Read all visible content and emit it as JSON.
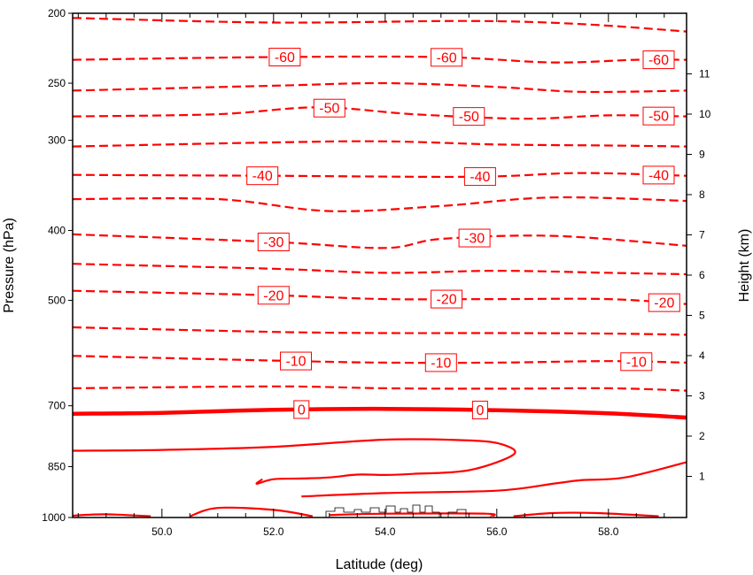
{
  "chart_data": {
    "type": "contour",
    "xlabel": "Latitude (deg)",
    "ylabel": "Pressure (hPa)",
    "y2label": "Height (km)",
    "xlim": [
      48.4,
      59.4
    ],
    "ylim": [
      1000,
      200
    ],
    "yscale": "log",
    "x_ticks": [
      50,
      52,
      54,
      56,
      58
    ],
    "x_tick_labels": [
      "50.0",
      "52.0",
      "54.0",
      "56.0",
      "58.0"
    ],
    "y_ticks": [
      1000,
      850,
      700,
      500,
      400,
      300,
      250,
      200
    ],
    "y_tick_labels": [
      "1000",
      "850",
      "700",
      "500",
      "400",
      "300",
      "250",
      "200"
    ],
    "y2_ticks": [
      1,
      2,
      3,
      4,
      5,
      6,
      7,
      8,
      9,
      10,
      11
    ],
    "y2_tick_labels": [
      "1",
      "2",
      "3",
      "4",
      "5",
      "6",
      "7",
      "8",
      "9",
      "10",
      "11"
    ],
    "contour_color": "#ff0000",
    "contours": [
      {
        "level": -65,
        "dash": true,
        "points": [
          [
            48.4,
            203
          ],
          [
            52,
            206
          ],
          [
            55.5,
            205
          ],
          [
            57.5,
            207
          ],
          [
            59.4,
            212
          ]
        ],
        "labels": []
      },
      {
        "level": -60,
        "dash": true,
        "points": [
          [
            48.4,
            232
          ],
          [
            52,
            230
          ],
          [
            55,
            230
          ],
          [
            57,
            234
          ],
          [
            58.5,
            232
          ],
          [
            59.4,
            232
          ]
        ],
        "labels": [
          {
            "x": 52.2,
            "text": "-60"
          },
          {
            "x": 55.1,
            "text": "-60"
          },
          {
            "x": 58.9,
            "text": "-60"
          }
        ]
      },
      {
        "level": -55,
        "dash": true,
        "points": [
          [
            48.4,
            256
          ],
          [
            52,
            252
          ],
          [
            54,
            250
          ],
          [
            56,
            253
          ],
          [
            57.5,
            257
          ],
          [
            59.4,
            256
          ]
        ],
        "labels": []
      },
      {
        "level": -50,
        "dash": true,
        "points": [
          [
            48.4,
            278
          ],
          [
            51,
            276
          ],
          [
            52.8,
            270
          ],
          [
            54.5,
            276
          ],
          [
            56.5,
            280
          ],
          [
            58,
            277
          ],
          [
            59.4,
            278
          ]
        ],
        "labels": [
          {
            "x": 53,
            "text": "-50"
          },
          {
            "x": 55.5,
            "text": "-50"
          },
          {
            "x": 58.9,
            "text": "-50"
          }
        ]
      },
      {
        "level": -45,
        "dash": true,
        "points": [
          [
            48.4,
            306
          ],
          [
            52,
            302
          ],
          [
            54,
            301
          ],
          [
            56,
            304
          ],
          [
            58,
            305
          ],
          [
            59.4,
            306
          ]
        ],
        "labels": []
      },
      {
        "level": -40,
        "dash": true,
        "points": [
          [
            48.4,
            335
          ],
          [
            52,
            336
          ],
          [
            55.6,
            337
          ],
          [
            57.5,
            333
          ],
          [
            59.4,
            336
          ]
        ],
        "labels": [
          {
            "x": 51.8,
            "text": "-40"
          },
          {
            "x": 55.7,
            "text": "-40"
          },
          {
            "x": 58.9,
            "text": "-40"
          }
        ]
      },
      {
        "level": -35,
        "dash": true,
        "points": [
          [
            48.4,
            362
          ],
          [
            51,
            362
          ],
          [
            53,
            376
          ],
          [
            55,
            370
          ],
          [
            57,
            360
          ],
          [
            59.4,
            364
          ]
        ],
        "labels": []
      },
      {
        "level": -30,
        "dash": true,
        "points": [
          [
            48.4,
            405
          ],
          [
            52,
            415
          ],
          [
            54,
            423
          ],
          [
            55,
            411
          ],
          [
            57,
            407
          ],
          [
            59.4,
            420
          ]
        ],
        "labels": [
          {
            "x": 52.0,
            "text": "-30"
          },
          {
            "x": 55.6,
            "text": "-30"
          }
        ]
      },
      {
        "level": -25,
        "dash": true,
        "points": [
          [
            48.4,
            445
          ],
          [
            52,
            452
          ],
          [
            54,
            458
          ],
          [
            56,
            455
          ],
          [
            58,
            458
          ],
          [
            59.4,
            460
          ]
        ],
        "labels": []
      },
      {
        "level": -20,
        "dash": true,
        "points": [
          [
            48.4,
            485
          ],
          [
            52,
            492
          ],
          [
            54,
            498
          ],
          [
            56,
            498
          ],
          [
            58,
            498
          ],
          [
            59.4,
            506
          ]
        ],
        "labels": [
          {
            "x": 52.0,
            "text": "-20"
          },
          {
            "x": 55.1,
            "text": "-20"
          },
          {
            "x": 59.0,
            "text": "-20"
          }
        ]
      },
      {
        "level": -15,
        "dash": true,
        "points": [
          [
            48.4,
            545
          ],
          [
            52,
            553
          ],
          [
            54,
            555
          ],
          [
            56,
            555
          ],
          [
            58,
            556
          ],
          [
            59.4,
            558
          ]
        ],
        "labels": []
      },
      {
        "level": -10,
        "dash": true,
        "points": [
          [
            48.4,
            597
          ],
          [
            52,
            606
          ],
          [
            54,
            610
          ],
          [
            56,
            610
          ],
          [
            58,
            607
          ],
          [
            59.4,
            610
          ]
        ],
        "labels": [
          {
            "x": 52.4,
            "text": "-10"
          },
          {
            "x": 55.0,
            "text": "-10"
          },
          {
            "x": 58.5,
            "text": "-10"
          }
        ]
      },
      {
        "level": -5,
        "dash": true,
        "points": [
          [
            48.4,
            662
          ],
          [
            52,
            658
          ],
          [
            54,
            662
          ],
          [
            56,
            663
          ],
          [
            58,
            662
          ],
          [
            59.4,
            667
          ]
        ],
        "labels": []
      },
      {
        "level": 0,
        "dash": false,
        "bold": true,
        "points": [
          [
            48.4,
            718
          ],
          [
            50,
            716
          ],
          [
            52,
            709
          ],
          [
            54,
            707
          ],
          [
            56,
            710
          ],
          [
            58,
            717
          ],
          [
            59.4,
            727
          ]
        ],
        "labels": [
          {
            "x": 52.5,
            "text": "0"
          },
          {
            "x": 55.7,
            "text": "0"
          }
        ]
      },
      {
        "level": 5,
        "dash": false,
        "points": [
          [
            48.4,
            808
          ],
          [
            50,
            806
          ],
          [
            52,
            798
          ],
          [
            54,
            780
          ],
          [
            55.5,
            782
          ],
          [
            56.1,
            792
          ],
          [
            56.3,
            818
          ],
          [
            55.5,
            860
          ],
          [
            54.5,
            870
          ],
          [
            54,
            873
          ],
          [
            53.5,
            872
          ],
          [
            53,
            880
          ],
          [
            52.5,
            883
          ],
          [
            52,
            885
          ],
          [
            51.7,
            898
          ],
          [
            51.8,
            885
          ]
        ],
        "labels": []
      },
      {
        "level": 5,
        "dash": false,
        "points": [
          [
            52.5,
            935
          ],
          [
            54,
            925
          ],
          [
            56,
            918
          ],
          [
            57,
            898
          ],
          [
            57.5,
            888
          ],
          [
            58.3,
            880
          ],
          [
            59.4,
            838
          ]
        ],
        "labels": []
      },
      {
        "level": 10,
        "dash": false,
        "points": [
          [
            48.4,
            994
          ],
          [
            49,
            990
          ],
          [
            49.8,
            996
          ]
        ],
        "labels": []
      },
      {
        "level": 10,
        "dash": false,
        "points": [
          [
            50.5,
            996
          ],
          [
            51,
            970
          ],
          [
            52,
            976
          ],
          [
            52.7,
            996
          ]
        ],
        "labels": []
      },
      {
        "level": 10,
        "dash": false,
        "points": [
          [
            53,
            992
          ],
          [
            54,
            988
          ],
          [
            55.8,
            988
          ],
          [
            55.9,
            996
          ]
        ],
        "labels": []
      },
      {
        "level": 10,
        "dash": false,
        "points": [
          [
            56.3,
            996
          ],
          [
            57,
            986
          ],
          [
            57.8,
            986
          ],
          [
            58.9,
            996
          ]
        ],
        "labels": []
      }
    ]
  }
}
